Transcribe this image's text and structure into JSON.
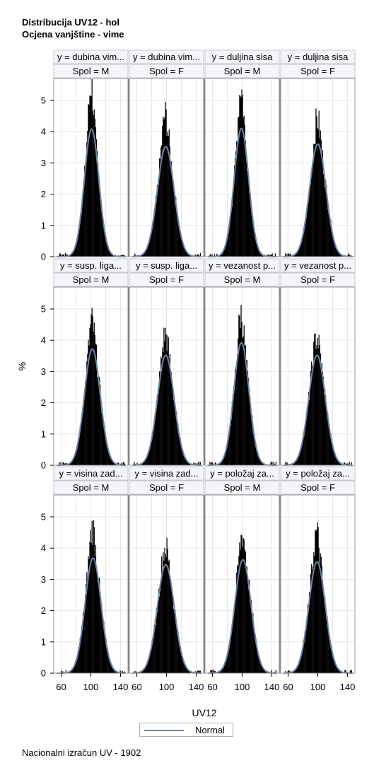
{
  "title_line1": "Distribucija UV12 - hol",
  "title_line2": "Ocjena vanjštine - vime",
  "footnote": "Nacionalni izračun UV - 1902",
  "colors": {
    "bars": "#000000",
    "normal_curve": "#6f83a3",
    "header_bg": "#f4f5fa",
    "grid": "#e6e6e6",
    "frame": "#9a9a9a"
  },
  "chart_data": {
    "type": "panel-histogram",
    "xlabel": "UV12",
    "ylabel": "%",
    "xticks": [
      60,
      100,
      140
    ],
    "yticks": [
      0,
      1,
      2,
      3,
      4,
      5
    ],
    "xlim": [
      50,
      150
    ],
    "ylim": [
      0,
      5.7
    ],
    "grid": true,
    "legend": {
      "position": "bottom",
      "entries": [
        "Normal"
      ]
    },
    "panels": [
      {
        "row": 0,
        "col": 0,
        "y_header": "y = dubina vim...",
        "spol_header": "Spol = M",
        "mean": 101,
        "sd": 9.8,
        "max_pct": 5.5,
        "normal_peak": 4.08,
        "skew": 0.0
      },
      {
        "row": 0,
        "col": 1,
        "y_header": "y = dubina vim...",
        "spol_header": "Spol = F",
        "mean": 99,
        "sd": 11.3,
        "max_pct": 4.55,
        "normal_peak": 3.52,
        "skew": 0.0
      },
      {
        "row": 0,
        "col": 2,
        "y_header": "y = duljina sisa",
        "spol_header": "Spol = M",
        "mean": 99,
        "sd": 9.8,
        "max_pct": 5.45,
        "normal_peak": 4.1,
        "skew": 0.0
      },
      {
        "row": 0,
        "col": 3,
        "y_header": "y = duljina sisa",
        "spol_header": "Spol = F",
        "mean": 100,
        "sd": 11.1,
        "max_pct": 4.4,
        "normal_peak": 3.6,
        "skew": 0.0
      },
      {
        "row": 1,
        "col": 0,
        "y_header": "y = susp. liga...",
        "spol_header": "Spol = M",
        "mean": 102,
        "sd": 10.7,
        "max_pct": 4.6,
        "normal_peak": 3.72,
        "skew": 0.0
      },
      {
        "row": 1,
        "col": 1,
        "y_header": "y = susp. liga...",
        "spol_header": "Spol = F",
        "mean": 99,
        "sd": 11.3,
        "max_pct": 4.2,
        "normal_peak": 3.52,
        "skew": 0.0
      },
      {
        "row": 1,
        "col": 2,
        "y_header": "y = vezanost p...",
        "spol_header": "Spol = M",
        "mean": 99,
        "sd": 10.2,
        "max_pct": 4.85,
        "normal_peak": 3.92,
        "skew": 0.0
      },
      {
        "row": 1,
        "col": 3,
        "y_header": "y = vezanost p...",
        "spol_header": "Spol = F",
        "mean": 99,
        "sd": 11.3,
        "max_pct": 4.1,
        "normal_peak": 3.52,
        "skew": 0.0
      },
      {
        "row": 2,
        "col": 0,
        "y_header": "y = visina zad...",
        "spol_header": "Spol = M",
        "mean": 103,
        "sd": 10.8,
        "max_pct": 4.65,
        "normal_peak": 3.68,
        "skew": -0.9
      },
      {
        "row": 2,
        "col": 1,
        "y_header": "y = visina zad...",
        "spol_header": "Spol = F",
        "mean": 99,
        "sd": 11.5,
        "max_pct": 4.05,
        "normal_peak": 3.47,
        "skew": 0.0
      },
      {
        "row": 2,
        "col": 2,
        "y_header": "y = položaj za...",
        "spol_header": "Spol = M",
        "mean": 101,
        "sd": 11.0,
        "max_pct": 4.45,
        "normal_peak": 3.63,
        "skew": -0.6
      },
      {
        "row": 2,
        "col": 3,
        "y_header": "y = položaj za...",
        "spol_header": "Spol = F",
        "mean": 99,
        "sd": 11.2,
        "max_pct": 4.5,
        "normal_peak": 3.56,
        "skew": -0.5
      }
    ]
  }
}
